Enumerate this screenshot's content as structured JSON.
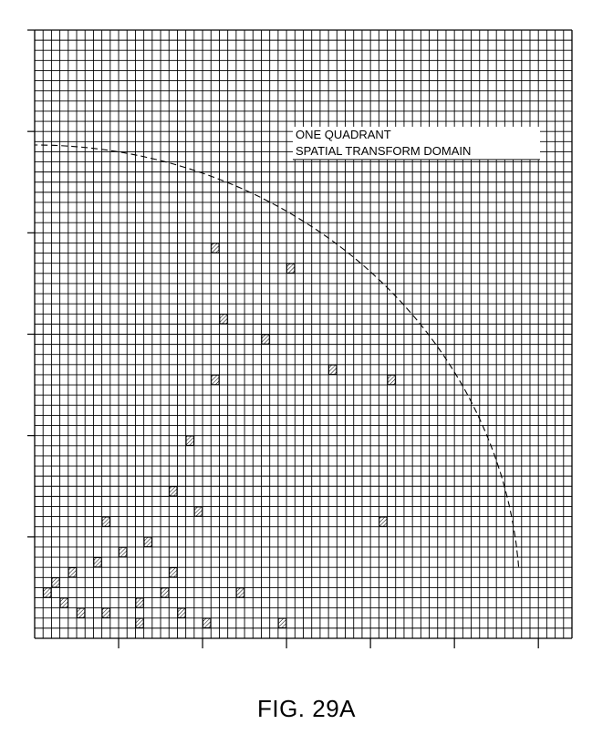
{
  "figure": {
    "caption": "FIG. 29A",
    "grid": {
      "columns": 64,
      "rows": 60
    },
    "annotation": {
      "line1": "ONE QUADRANT",
      "line2": "SPATIAL TRANSFORM DOMAIN"
    },
    "curve": {
      "style": "dashed"
    },
    "hatched_cells": [
      [
        3,
        3
      ],
      [
        1,
        4
      ],
      [
        2,
        5
      ],
      [
        5,
        2
      ],
      [
        8,
        2
      ],
      [
        4,
        6
      ],
      [
        7,
        7
      ],
      [
        10,
        8
      ],
      [
        12,
        3
      ],
      [
        13,
        9
      ],
      [
        15,
        4
      ],
      [
        8,
        11
      ],
      [
        17,
        2
      ],
      [
        16,
        6
      ],
      [
        16,
        14
      ],
      [
        19,
        12
      ],
      [
        18,
        19
      ],
      [
        21,
        25
      ],
      [
        22,
        31
      ],
      [
        21,
        38
      ],
      [
        35,
        26
      ],
      [
        27,
        29
      ],
      [
        30,
        36
      ],
      [
        41,
        11
      ],
      [
        29,
        1
      ],
      [
        24,
        4
      ],
      [
        42,
        25
      ],
      [
        20,
        1
      ],
      [
        12,
        1
      ]
    ]
  }
}
